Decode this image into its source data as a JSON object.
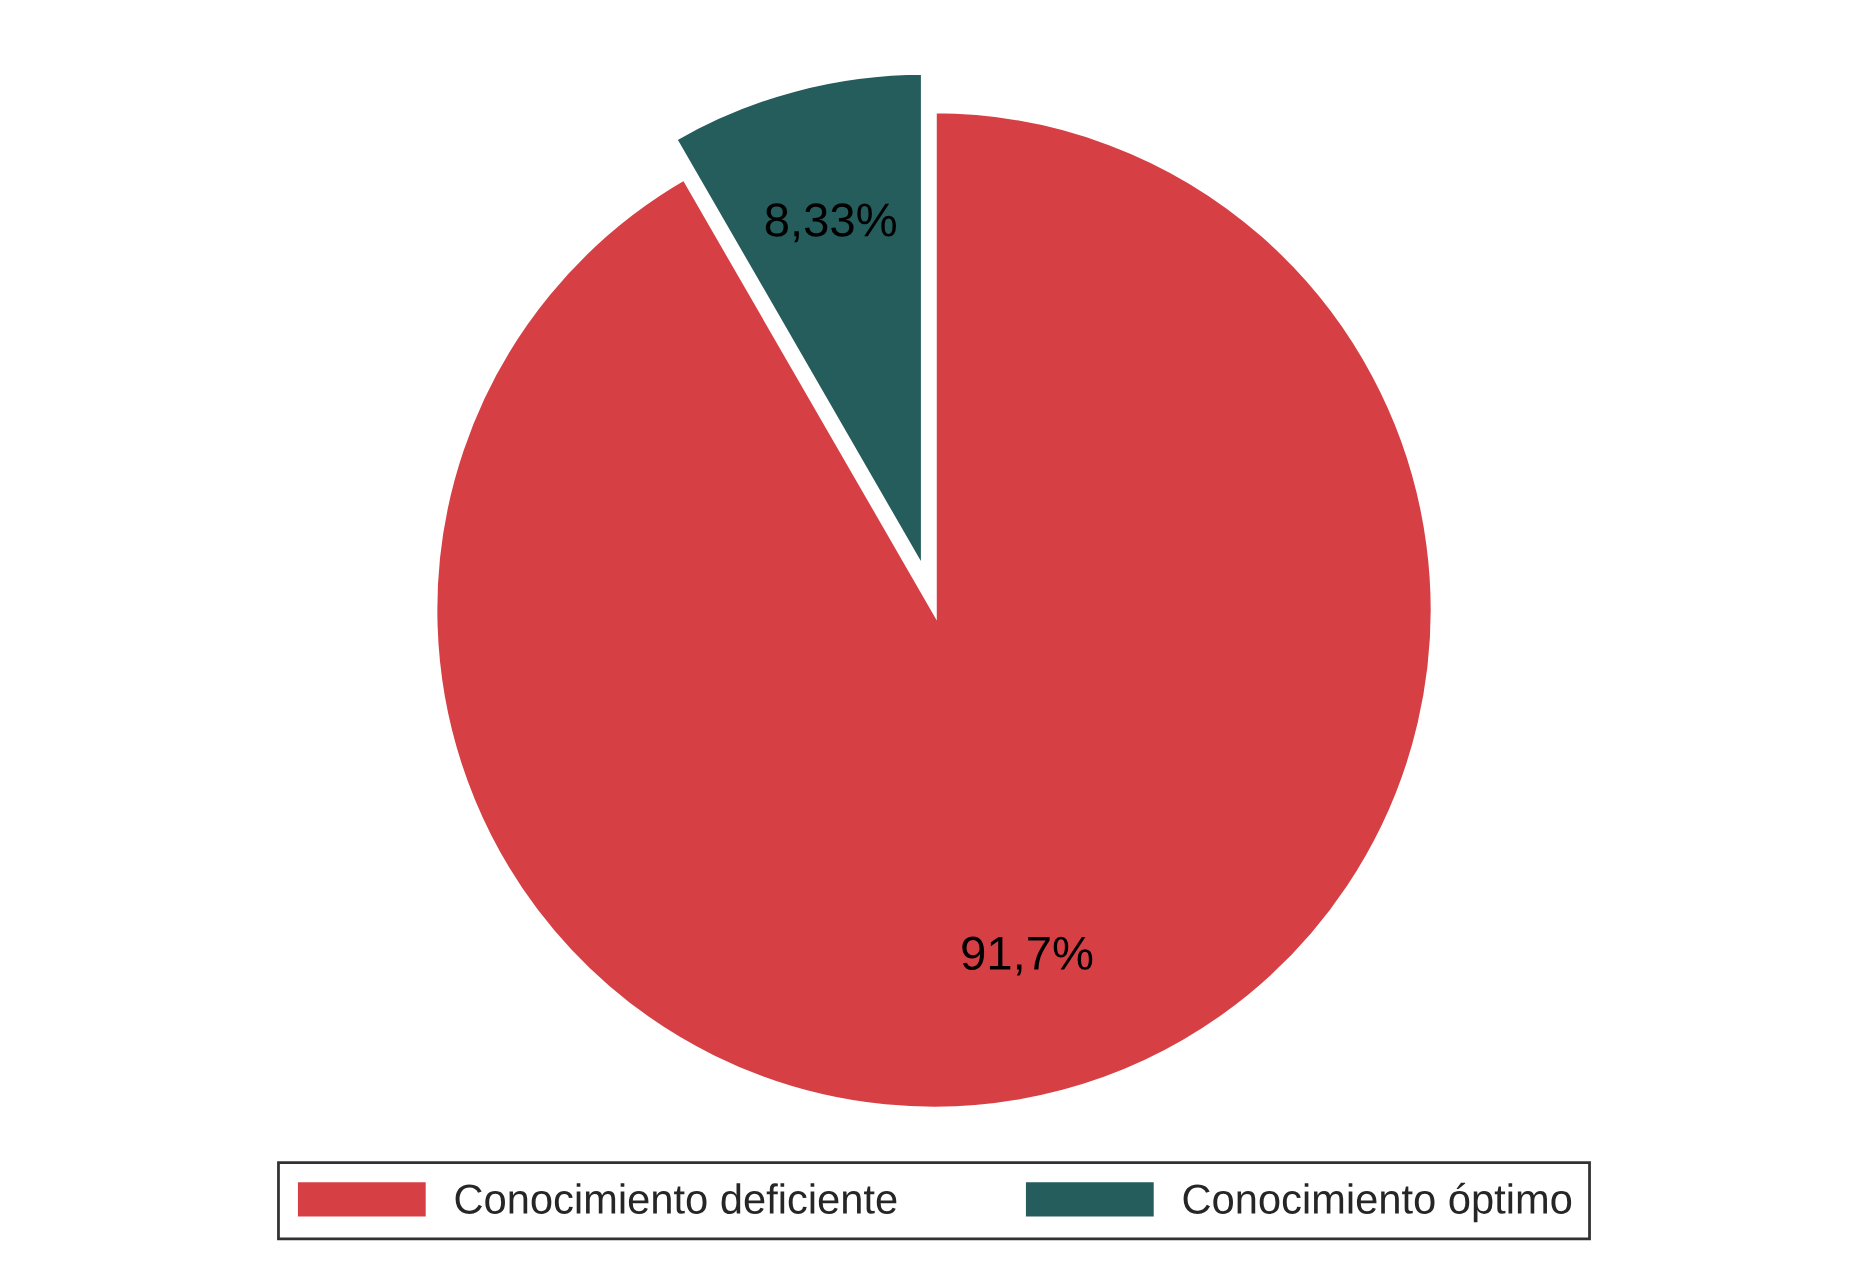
{
  "chart_data": {
    "type": "pie",
    "categories": [
      "Conocimiento deficiente",
      "Conocimiento óptimo"
    ],
    "values": [
      91.7,
      8.33
    ],
    "value_labels": [
      "91,7%",
      "8,33%"
    ],
    "colors": [
      "#d64045",
      "#255c5c"
    ],
    "legend": "bottom"
  }
}
